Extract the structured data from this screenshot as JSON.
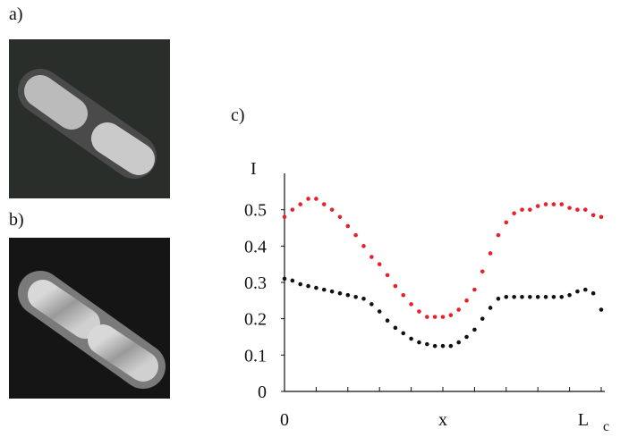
{
  "panels": {
    "a": "a)",
    "b": "b)",
    "c": "c)"
  },
  "chart_data": {
    "type": "scatter",
    "y_label": "I",
    "x_label": "x",
    "x": [
      0,
      0.025,
      0.05,
      0.075,
      0.1,
      0.125,
      0.15,
      0.175,
      0.2,
      0.225,
      0.25,
      0.275,
      0.3,
      0.325,
      0.35,
      0.375,
      0.4,
      0.425,
      0.45,
      0.475,
      0.5,
      0.525,
      0.55,
      0.575,
      0.6,
      0.625,
      0.65,
      0.675,
      0.7,
      0.725,
      0.75,
      0.775,
      0.8,
      0.825,
      0.85,
      0.875,
      0.9,
      0.925,
      0.95,
      0.975,
      1
    ],
    "series": [
      {
        "color": "#e8202a",
        "values": [
          0.48,
          0.5,
          0.515,
          0.53,
          0.53,
          0.515,
          0.5,
          0.48,
          0.455,
          0.43,
          0.4,
          0.37,
          0.35,
          0.32,
          0.29,
          0.265,
          0.24,
          0.22,
          0.205,
          0.205,
          0.205,
          0.21,
          0.225,
          0.25,
          0.28,
          0.33,
          0.38,
          0.43,
          0.465,
          0.49,
          0.5,
          0.5,
          0.51,
          0.515,
          0.515,
          0.515,
          0.505,
          0.5,
          0.5,
          0.485,
          0.48
        ]
      },
      {
        "color": "#111111",
        "values": [
          0.31,
          0.305,
          0.295,
          0.29,
          0.285,
          0.28,
          0.275,
          0.27,
          0.265,
          0.26,
          0.255,
          0.24,
          0.22,
          0.195,
          0.175,
          0.16,
          0.145,
          0.135,
          0.13,
          0.125,
          0.125,
          0.125,
          0.135,
          0.15,
          0.17,
          0.2,
          0.23,
          0.255,
          0.26,
          0.26,
          0.26,
          0.26,
          0.26,
          0.26,
          0.26,
          0.26,
          0.265,
          0.275,
          0.28,
          0.27,
          0.225
        ]
      }
    ],
    "xlim": [
      0,
      1
    ],
    "ylim": [
      0,
      0.6
    ],
    "xticks": [
      0,
      0.1,
      0.2,
      0.3,
      0.4,
      0.5,
      0.6,
      0.7,
      0.8,
      0.9,
      1
    ],
    "xtick_labels": [
      {
        "value": 0,
        "label": "0"
      },
      {
        "value": 1,
        "label": "L",
        "subscript": "c"
      }
    ],
    "yticks": [
      0,
      0.1,
      0.2,
      0.3,
      0.4,
      0.5
    ]
  }
}
